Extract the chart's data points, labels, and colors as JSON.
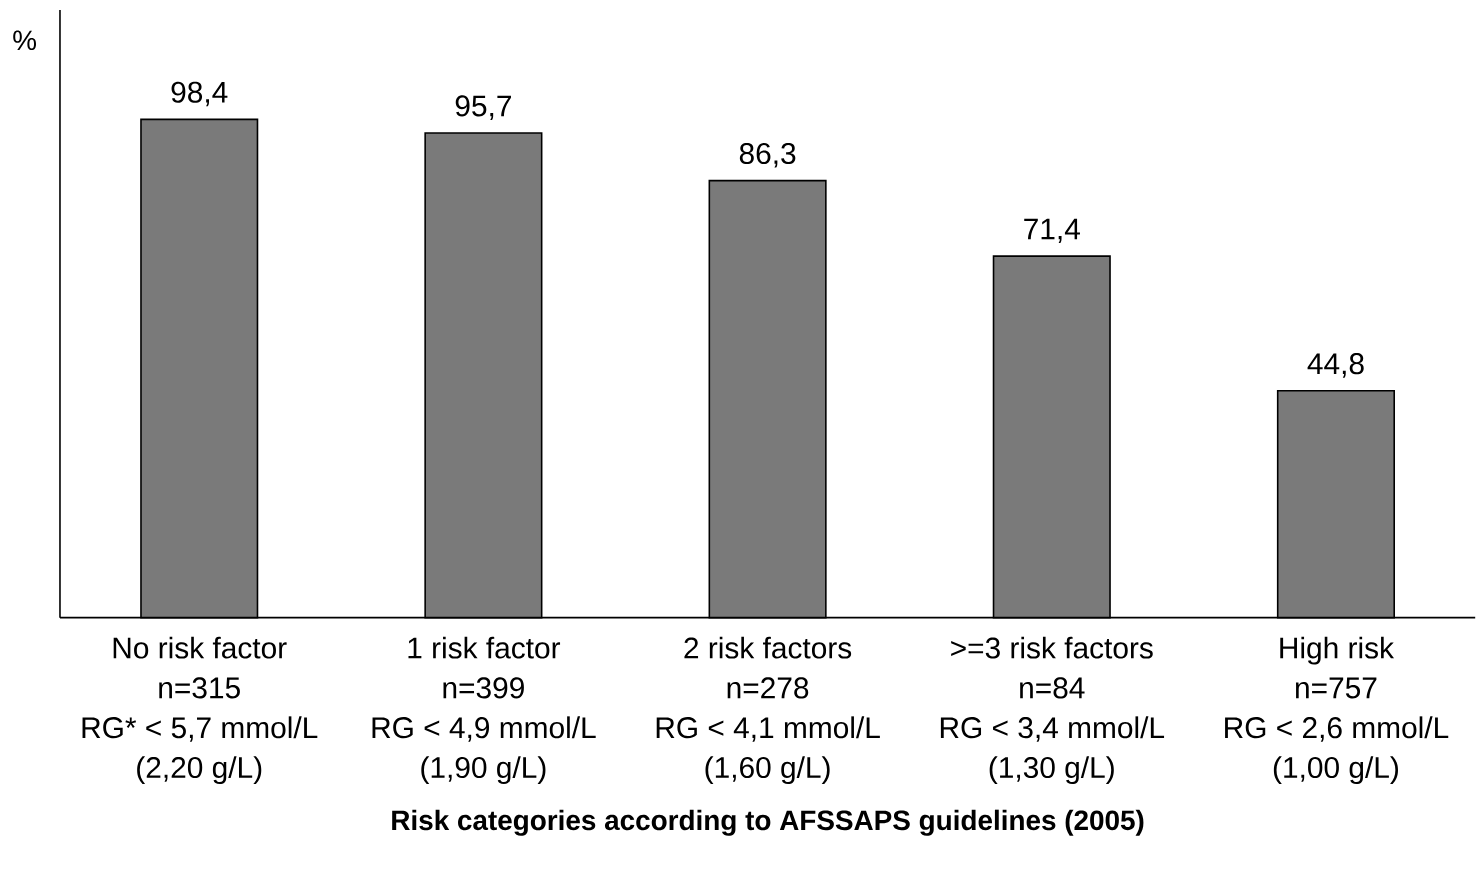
{
  "chart_data": {
    "type": "bar",
    "ylabel": "%",
    "xlabel": "Risk categories according to AFSSAPS guidelines (2005)",
    "categories": [
      "No risk factor\nn=315\nRG* < 5,7 mmol/L\n(2,20 g/L)",
      "1 risk factor\nn=399\nRG < 4,9 mmol/L\n(1,90 g/L)",
      "2 risk factors\nn=278\nRG < 4,1 mmol/L\n(1,60 g/L)",
      ">=3 risk factors\nn=84\nRG < 3,4 mmol/L\n(1,30 g/L)",
      "High risk\nn=757\nRG < 2,6 mmol/L\n(1,00 g/L)"
    ],
    "values": [
      98.4,
      95.7,
      86.3,
      71.4,
      44.8
    ],
    "value_labels": [
      "98,4",
      "95,7",
      "86,3",
      "71,4",
      "44,8"
    ],
    "color": "#7a7a7a",
    "ylim": [
      0,
      120
    ]
  }
}
